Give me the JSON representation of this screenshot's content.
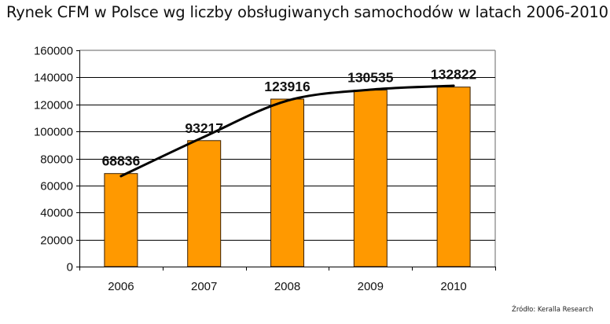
{
  "title": "Rynek CFM w Polsce wg liczby obsługiwanych samochodów w latach 2006-2010",
  "source": "Źródło: Keralla Research",
  "colors": {
    "bar": "#FF9900",
    "bar_border": "#3a2000",
    "grid": "#000000",
    "trend": "#000000",
    "frame": "#808080"
  },
  "chart_data": {
    "type": "bar",
    "title": "Rynek CFM w Polsce wg liczby obsługiwanych samochodów w latach 2006-2010",
    "categories": [
      "2006",
      "2007",
      "2008",
      "2009",
      "2010"
    ],
    "values": [
      68836,
      93217,
      123916,
      130535,
      132822
    ],
    "data_labels": [
      "68836",
      "93217",
      "123916",
      "130535",
      "132822"
    ],
    "xlabel": "",
    "ylabel": "",
    "ylim": [
      0,
      160000
    ],
    "yticks": [
      "0",
      "20000",
      "40000",
      "60000",
      "80000",
      "100000",
      "120000",
      "140000",
      "160000"
    ],
    "grid": true,
    "legend": null,
    "trendline": "logarithmic (black curve)",
    "source": "Źródło: Keralla Research"
  }
}
